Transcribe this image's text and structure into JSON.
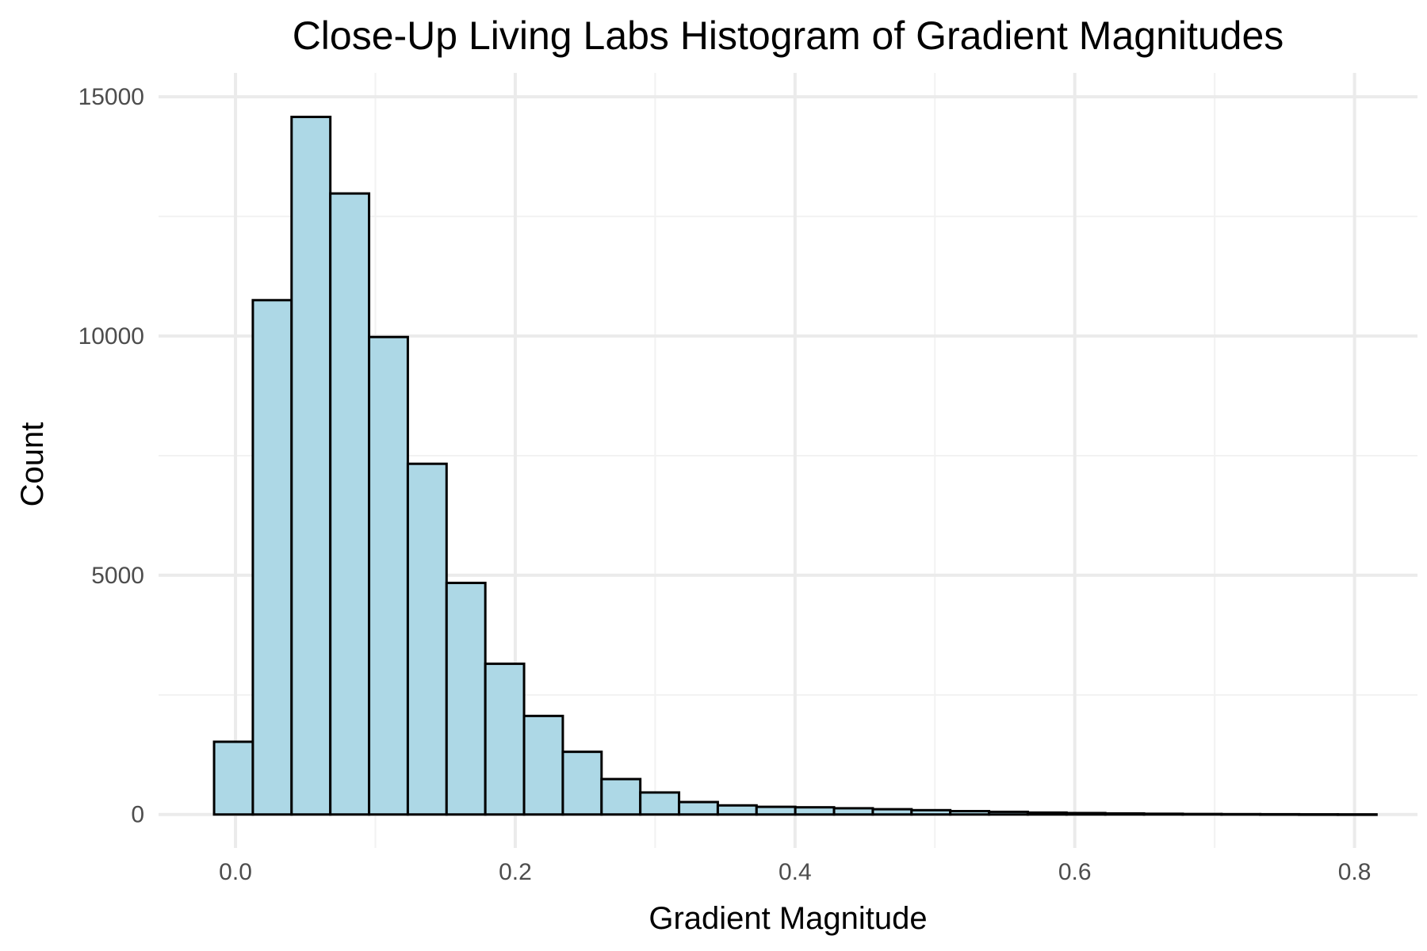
{
  "chart_data": {
    "type": "bar",
    "title": "Close-Up Living Labs Histogram of Gradient Magnitudes",
    "xlabel": "Gradient Magnitude",
    "ylabel": "Count",
    "xlim": [
      -0.055,
      0.845
    ],
    "ylim": [
      -700,
      15500
    ],
    "x_ticks": [
      0.0,
      0.2,
      0.4,
      0.6,
      0.8
    ],
    "x_tick_labels": [
      "0.0",
      "0.2",
      "0.4",
      "0.6",
      "0.8"
    ],
    "y_ticks": [
      0,
      5000,
      10000,
      15000
    ],
    "y_tick_labels": [
      "0",
      "5000",
      "10000",
      "15000"
    ],
    "grid": true,
    "bar_fill": "#add8e6",
    "bar_outline": "#000000",
    "bins": [
      {
        "x0": -0.0153,
        "x1": 0.0124,
        "count": 1520
      },
      {
        "x0": 0.0124,
        "x1": 0.0401,
        "count": 10750
      },
      {
        "x0": 0.0401,
        "x1": 0.0678,
        "count": 14580
      },
      {
        "x0": 0.0678,
        "x1": 0.0955,
        "count": 12980
      },
      {
        "x0": 0.0955,
        "x1": 0.1232,
        "count": 9980
      },
      {
        "x0": 0.1232,
        "x1": 0.1509,
        "count": 7330
      },
      {
        "x0": 0.1509,
        "x1": 0.1786,
        "count": 4840
      },
      {
        "x0": 0.1786,
        "x1": 0.2063,
        "count": 3150
      },
      {
        "x0": 0.2063,
        "x1": 0.234,
        "count": 2060
      },
      {
        "x0": 0.234,
        "x1": 0.2617,
        "count": 1310
      },
      {
        "x0": 0.2617,
        "x1": 0.2894,
        "count": 740
      },
      {
        "x0": 0.2894,
        "x1": 0.3171,
        "count": 460
      },
      {
        "x0": 0.3171,
        "x1": 0.3448,
        "count": 260
      },
      {
        "x0": 0.3448,
        "x1": 0.3725,
        "count": 190
      },
      {
        "x0": 0.3725,
        "x1": 0.4002,
        "count": 160
      },
      {
        "x0": 0.4002,
        "x1": 0.4279,
        "count": 150
      },
      {
        "x0": 0.4279,
        "x1": 0.4556,
        "count": 130
      },
      {
        "x0": 0.4556,
        "x1": 0.4833,
        "count": 110
      },
      {
        "x0": 0.4833,
        "x1": 0.511,
        "count": 90
      },
      {
        "x0": 0.511,
        "x1": 0.5387,
        "count": 70
      },
      {
        "x0": 0.5387,
        "x1": 0.5664,
        "count": 55
      },
      {
        "x0": 0.5664,
        "x1": 0.5941,
        "count": 40
      },
      {
        "x0": 0.5941,
        "x1": 0.6218,
        "count": 30
      },
      {
        "x0": 0.6218,
        "x1": 0.6495,
        "count": 22
      },
      {
        "x0": 0.6495,
        "x1": 0.6772,
        "count": 15
      },
      {
        "x0": 0.6772,
        "x1": 0.7049,
        "count": 10
      },
      {
        "x0": 0.7049,
        "x1": 0.7326,
        "count": 7
      },
      {
        "x0": 0.7326,
        "x1": 0.7603,
        "count": 5
      },
      {
        "x0": 0.7603,
        "x1": 0.788,
        "count": 3
      },
      {
        "x0": 0.788,
        "x1": 0.8157,
        "count": 2
      }
    ]
  }
}
